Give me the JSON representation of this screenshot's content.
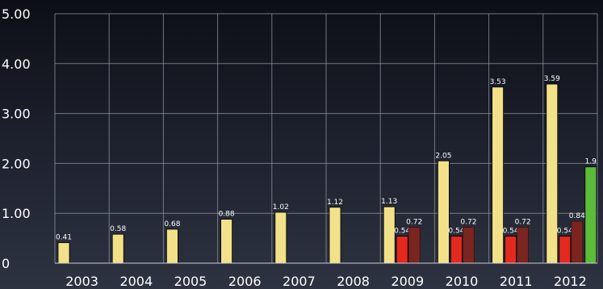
{
  "chart_data": {
    "type": "bar",
    "title": "",
    "xlabel": "",
    "ylabel": "",
    "ylim": [
      0,
      5
    ],
    "yticks": [
      "0",
      "1.00",
      "2.00",
      "3.00",
      "4.00",
      "5.00"
    ],
    "grid": true,
    "categories": [
      "2003",
      "2004",
      "2005",
      "2006",
      "2007",
      "2008",
      "2009",
      "2010",
      "2011",
      "2012"
    ],
    "series": [
      {
        "color": "#f3e18a",
        "values": [
          0.41,
          0.58,
          0.68,
          0.88,
          1.02,
          1.12,
          1.13,
          2.05,
          3.53,
          3.59
        ],
        "labels": [
          "0.41",
          "0.58",
          "0.68",
          "0.88",
          "1.02",
          "1.12",
          "1.13",
          "2.05",
          "3.53",
          "3.59"
        ]
      },
      {
        "color": "#e4291f",
        "values": [
          null,
          null,
          null,
          null,
          null,
          null,
          0.54,
          0.54,
          0.54,
          0.54
        ],
        "labels": [
          "",
          "",
          "",
          "",
          "",
          "",
          "0.54",
          "0.54",
          "0.54",
          "0.54"
        ]
      },
      {
        "color": "#7a2520",
        "values": [
          null,
          null,
          null,
          null,
          null,
          null,
          0.72,
          0.72,
          0.72,
          0.84
        ],
        "labels": [
          "",
          "",
          "",
          "",
          "",
          "",
          "0.72",
          "0.72",
          "0.72",
          "0.84"
        ]
      },
      {
        "color": "#5dbb3c",
        "values": [
          null,
          null,
          null,
          null,
          null,
          null,
          null,
          null,
          null,
          1.93
        ],
        "labels": [
          "",
          "",
          "",
          "",
          "",
          "",
          "",
          "",
          "",
          "1.9"
        ]
      }
    ]
  }
}
